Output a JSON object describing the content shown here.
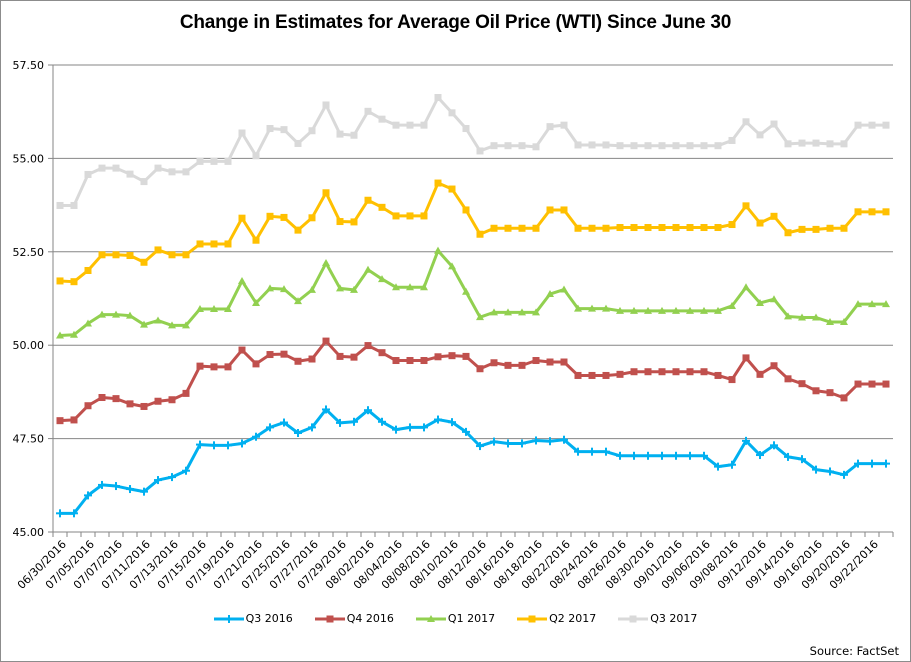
{
  "chart_data": {
    "type": "line",
    "title": "Change in Estimates for Average Oil Price (WTI) Since June 30",
    "xlabel": "",
    "ylabel": "",
    "ylim": [
      45.0,
      57.5
    ],
    "yticks": [
      "45.00",
      "47.50",
      "50.00",
      "52.50",
      "55.00",
      "57.50"
    ],
    "ytick_values": [
      45.0,
      47.5,
      50.0,
      52.5,
      55.0,
      57.5
    ],
    "grid": "horizontal",
    "legend_position": "bottom",
    "x_tick_labels": [
      "06/30/2016",
      "07/05/2016",
      "07/07/2016",
      "07/11/2016",
      "07/13/2016",
      "07/15/2016",
      "07/19/2016",
      "07/21/2016",
      "07/25/2016",
      "07/27/2016",
      "07/29/2016",
      "08/02/2016",
      "08/04/2016",
      "08/08/2016",
      "08/10/2016",
      "08/12/2016",
      "08/16/2016",
      "08/18/2016",
      "08/22/2016",
      "08/24/2016",
      "08/26/2016",
      "08/30/2016",
      "09/01/2016",
      "09/06/2016",
      "09/08/2016",
      "09/12/2016",
      "09/14/2016",
      "09/16/2016",
      "09/20/2016",
      "09/22/2016"
    ],
    "x": [
      "06/30/2016",
      "07/01/2016",
      "07/05/2016",
      "07/06/2016",
      "07/07/2016",
      "07/08/2016",
      "07/11/2016",
      "07/12/2016",
      "07/13/2016",
      "07/14/2016",
      "07/15/2016",
      "07/18/2016",
      "07/19/2016",
      "07/20/2016",
      "07/21/2016",
      "07/22/2016",
      "07/25/2016",
      "07/26/2016",
      "07/27/2016",
      "07/28/2016",
      "07/29/2016",
      "08/01/2016",
      "08/02/2016",
      "08/03/2016",
      "08/04/2016",
      "08/05/2016",
      "08/08/2016",
      "08/09/2016",
      "08/10/2016",
      "08/11/2016",
      "08/12/2016",
      "08/15/2016",
      "08/16/2016",
      "08/17/2016",
      "08/18/2016",
      "08/19/2016",
      "08/22/2016",
      "08/23/2016",
      "08/24/2016",
      "08/25/2016",
      "08/26/2016",
      "08/29/2016",
      "08/30/2016",
      "08/31/2016",
      "09/01/2016",
      "09/02/2016",
      "09/06/2016",
      "09/07/2016",
      "09/08/2016",
      "09/09/2016",
      "09/12/2016",
      "09/13/2016",
      "09/14/2016",
      "09/15/2016",
      "09/16/2016",
      "09/19/2016",
      "09/20/2016",
      "09/21/2016",
      "09/22/2016",
      "09/23/2016"
    ],
    "series": [
      {
        "name": "Q3 2016",
        "color": "#00b0f0",
        "marker": "plus",
        "values": [
          45.5,
          45.5,
          45.98,
          46.26,
          46.23,
          46.15,
          46.08,
          46.39,
          46.47,
          46.64,
          47.34,
          47.32,
          47.32,
          47.37,
          47.55,
          47.8,
          47.93,
          47.65,
          47.8,
          48.28,
          47.92,
          47.95,
          48.26,
          47.95,
          47.74,
          47.8,
          47.8,
          48.01,
          47.94,
          47.68,
          47.3,
          47.42,
          47.37,
          47.37,
          47.45,
          47.43,
          47.47,
          47.15,
          47.15,
          47.15,
          47.04,
          47.04,
          47.04,
          47.04,
          47.04,
          47.04,
          47.04,
          46.75,
          46.8,
          47.44,
          47.06,
          47.32,
          47.01,
          46.95,
          46.67,
          46.62,
          46.53,
          46.83,
          46.83,
          46.83
        ]
      },
      {
        "name": "Q4 2016",
        "color": "#c0504d",
        "marker": "square",
        "values": [
          47.98,
          48.0,
          48.38,
          48.6,
          48.57,
          48.43,
          48.36,
          48.5,
          48.54,
          48.71,
          49.44,
          49.42,
          49.42,
          49.87,
          49.5,
          49.75,
          49.76,
          49.57,
          49.63,
          50.11,
          49.7,
          49.68,
          49.99,
          49.8,
          49.59,
          49.59,
          49.59,
          49.69,
          49.72,
          49.7,
          49.37,
          49.53,
          49.46,
          49.46,
          49.59,
          49.55,
          49.55,
          49.19,
          49.19,
          49.19,
          49.22,
          49.29,
          49.29,
          49.29,
          49.29,
          49.29,
          49.29,
          49.19,
          49.08,
          49.66,
          49.22,
          49.45,
          49.1,
          48.97,
          48.78,
          48.73,
          48.59,
          48.96,
          48.96,
          48.96
        ]
      },
      {
        "name": "Q1 2017",
        "color": "#92d050",
        "marker": "triangle",
        "values": [
          50.26,
          50.28,
          50.58,
          50.82,
          50.82,
          50.79,
          50.55,
          50.66,
          50.53,
          50.53,
          50.97,
          50.97,
          50.97,
          51.72,
          51.13,
          51.52,
          51.5,
          51.18,
          51.48,
          52.2,
          51.52,
          51.48,
          52.02,
          51.77,
          51.55,
          51.55,
          51.55,
          52.53,
          52.11,
          51.43,
          50.75,
          50.88,
          50.88,
          50.88,
          50.88,
          51.37,
          51.49,
          50.98,
          50.98,
          50.98,
          50.92,
          50.92,
          50.92,
          50.92,
          50.92,
          50.92,
          50.92,
          50.92,
          51.05,
          51.55,
          51.13,
          51.23,
          50.77,
          50.74,
          50.74,
          50.62,
          50.62,
          51.1,
          51.1,
          51.1
        ]
      },
      {
        "name": "Q2 2017",
        "color": "#ffc000",
        "marker": "square",
        "values": [
          51.72,
          51.7,
          52.0,
          52.42,
          52.42,
          52.4,
          52.22,
          52.55,
          52.42,
          52.42,
          52.71,
          52.71,
          52.71,
          53.4,
          52.81,
          53.45,
          53.42,
          53.08,
          53.41,
          54.08,
          53.31,
          53.3,
          53.88,
          53.69,
          53.46,
          53.46,
          53.46,
          54.34,
          54.18,
          53.62,
          52.97,
          53.13,
          53.13,
          53.13,
          53.13,
          53.62,
          53.62,
          53.13,
          53.13,
          53.13,
          53.15,
          53.15,
          53.15,
          53.15,
          53.15,
          53.15,
          53.15,
          53.15,
          53.23,
          53.73,
          53.27,
          53.45,
          53.01,
          53.1,
          53.1,
          53.13,
          53.13,
          53.57,
          53.57,
          53.57
        ]
      },
      {
        "name": "Q3 2017",
        "color": "#d9d9d9",
        "marker": "square",
        "values": [
          53.74,
          53.74,
          54.57,
          54.74,
          54.74,
          54.58,
          54.38,
          54.74,
          54.64,
          54.64,
          54.92,
          54.92,
          54.92,
          55.68,
          55.07,
          55.8,
          55.77,
          55.4,
          55.74,
          56.43,
          55.65,
          55.62,
          56.26,
          56.05,
          55.89,
          55.89,
          55.89,
          56.63,
          56.22,
          55.8,
          55.2,
          55.34,
          55.34,
          55.34,
          55.31,
          55.85,
          55.89,
          55.36,
          55.36,
          55.36,
          55.34,
          55.34,
          55.34,
          55.34,
          55.34,
          55.34,
          55.34,
          55.34,
          55.48,
          55.98,
          55.63,
          55.92,
          55.39,
          55.41,
          55.41,
          55.39,
          55.39,
          55.89,
          55.89,
          55.89
        ]
      }
    ],
    "source": "Source: FactSet"
  }
}
